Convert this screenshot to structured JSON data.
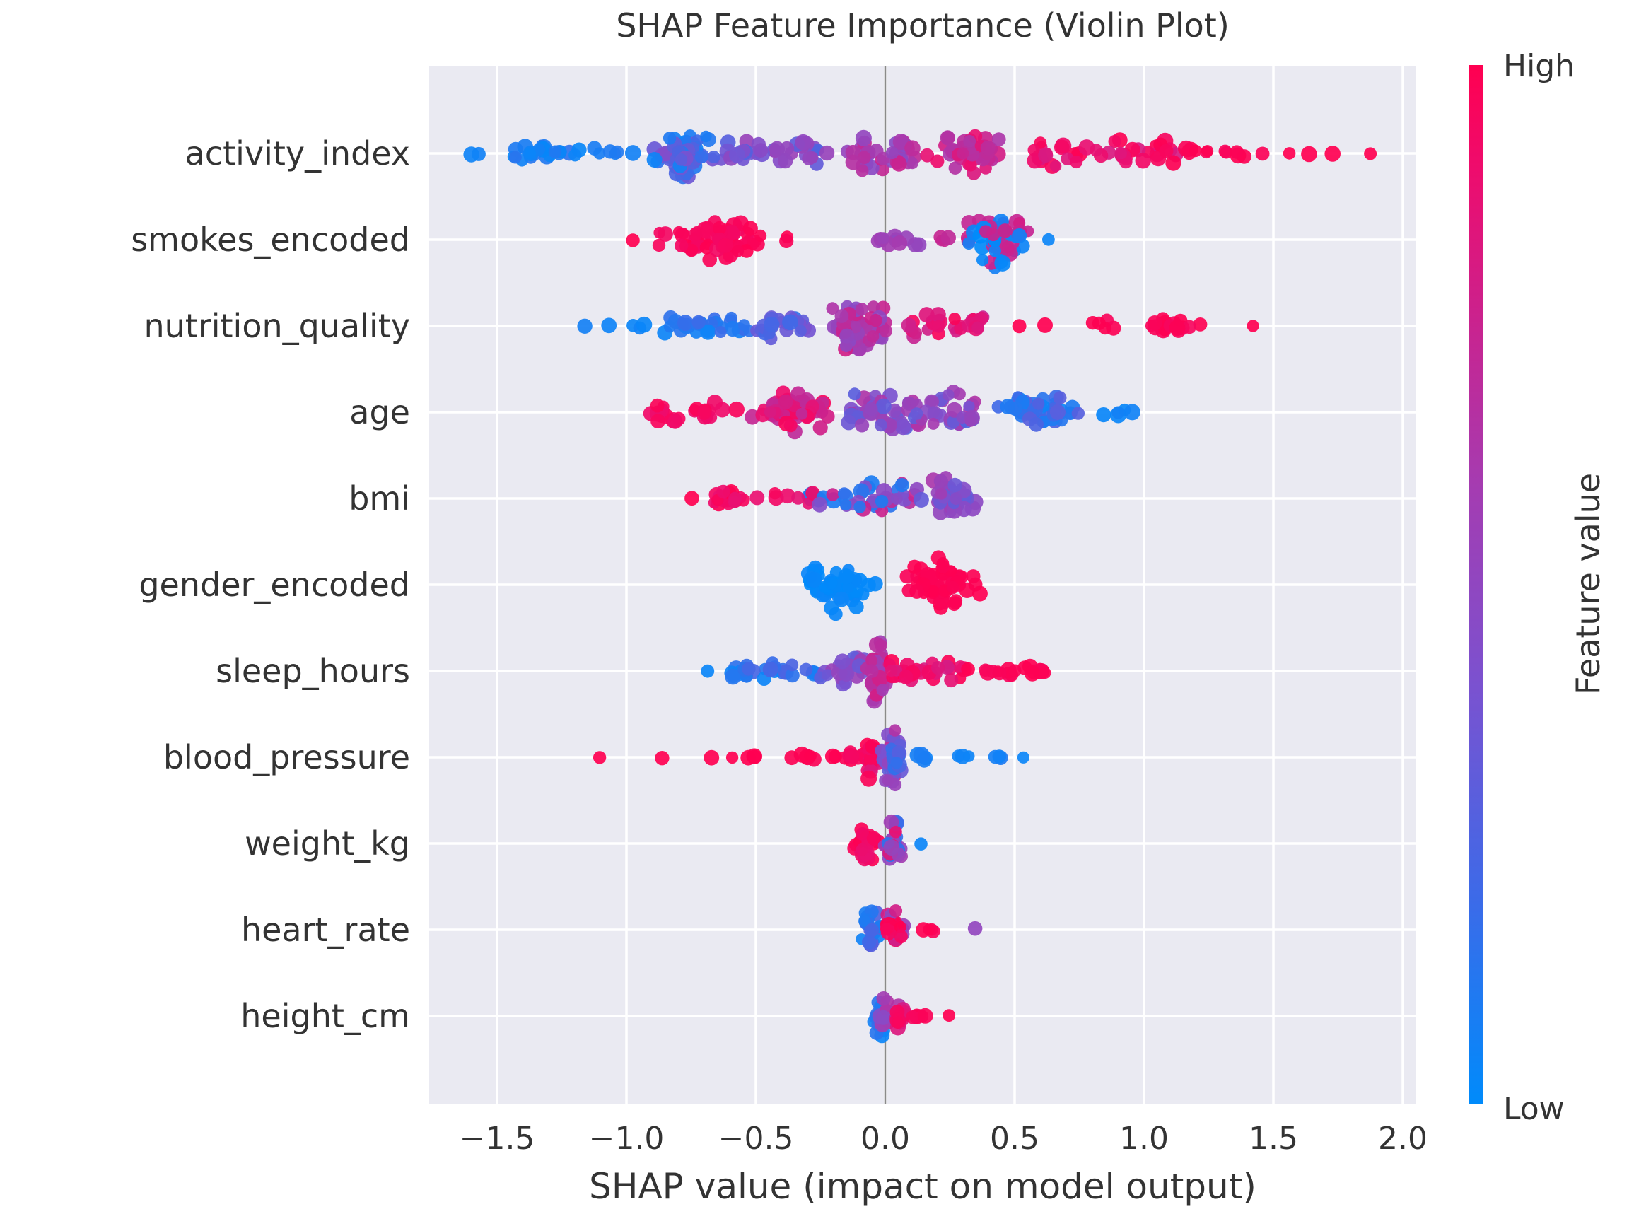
{
  "chart_data": {
    "type": "scatter",
    "subtype": "shap-beeswarm",
    "title": "SHAP Feature Importance (Violin Plot)",
    "xlabel": "SHAP value (impact on model output)",
    "background_color": "#eaeaf2",
    "gridline_color": "#ffffff",
    "zero_line_color": "#8a8a8a",
    "text_color": "#3a3a3a",
    "xlim": [
      -1.76,
      2.05
    ],
    "x_ticks": [
      -1.5,
      -1.0,
      -0.5,
      0.0,
      0.5,
      1.0,
      1.5,
      2.0
    ],
    "x_tick_labels": [
      "−1.5",
      "−1.0",
      "−0.5",
      "0.0",
      "0.5",
      "1.0",
      "1.5",
      "2.0"
    ],
    "legend_position": "right-colorbar",
    "grid": true,
    "colorbar": {
      "label": "Feature value",
      "high_label": "High",
      "low_label": "Low",
      "top_color": "#ff0051",
      "bottom_color": "#008bfb"
    },
    "colormap_stops": [
      {
        "p": 0.0,
        "c": "#008bfb"
      },
      {
        "p": 0.2,
        "c": "#3d6ae8"
      },
      {
        "p": 0.4,
        "c": "#7a52d0"
      },
      {
        "p": 0.6,
        "c": "#a63bb0"
      },
      {
        "p": 0.75,
        "c": "#c9238f"
      },
      {
        "p": 0.9,
        "c": "#ee0c6d"
      },
      {
        "p": 1.0,
        "c": "#ff0051"
      }
    ],
    "features": [
      {
        "name": "activity_index",
        "shap_range": [
          -1.62,
          1.87
        ],
        "clusters": [
          {
            "x0": -1.62,
            "x1": -1.53,
            "n": 2,
            "h": 3,
            "shape": "band",
            "t": [
              0.02,
              0.08
            ]
          },
          {
            "x0": -1.44,
            "x1": -1.02,
            "n": 26,
            "h": 15,
            "shape": "band",
            "t": [
              0.02,
              0.15
            ]
          },
          {
            "x0": -0.99,
            "x1": -0.97,
            "n": 1,
            "h": 2,
            "shape": "band",
            "t": [
              0.04,
              0.1
            ]
          },
          {
            "x0": -0.96,
            "x1": -0.62,
            "n": 62,
            "h": 36,
            "shape": "spindle",
            "t": [
              0.05,
              0.45
            ]
          },
          {
            "x0": -0.62,
            "x1": -0.26,
            "n": 34,
            "h": 20,
            "shape": "band",
            "t": [
              0.25,
              0.55
            ]
          },
          {
            "x0": -0.24,
            "x1": -0.22,
            "n": 1,
            "h": 2,
            "shape": "band",
            "t": [
              0.45,
              0.55
            ]
          },
          {
            "x0": -0.18,
            "x1": 0.12,
            "n": 40,
            "h": 26,
            "shape": "band",
            "t": [
              0.45,
              0.75
            ]
          },
          {
            "x0": 0.12,
            "x1": 0.55,
            "n": 45,
            "h": 32,
            "shape": "spindle",
            "t": [
              0.6,
              0.9
            ]
          },
          {
            "x0": 0.55,
            "x1": 1.12,
            "n": 42,
            "h": 22,
            "shape": "band",
            "t": [
              0.8,
              1.0
            ]
          },
          {
            "x0": 1.12,
            "x1": 1.48,
            "n": 13,
            "h": 9,
            "shape": "band",
            "t": [
              0.95,
              1.0
            ]
          },
          {
            "x0": 1.55,
            "x1": 1.57,
            "n": 1,
            "h": 2,
            "shape": "band",
            "t": [
              1,
              1
            ]
          },
          {
            "x0": 1.63,
            "x1": 1.65,
            "n": 1,
            "h": 2,
            "shape": "band",
            "t": [
              1,
              1
            ]
          },
          {
            "x0": 1.72,
            "x1": 1.74,
            "n": 1,
            "h": 2,
            "shape": "band",
            "t": [
              1,
              1
            ]
          },
          {
            "x0": 1.86,
            "x1": 1.88,
            "n": 1,
            "h": 2,
            "shape": "band",
            "t": [
              1,
              1
            ]
          }
        ]
      },
      {
        "name": "smokes_encoded",
        "shap_range": [
          -0.98,
          0.64
        ],
        "clusters": [
          {
            "x0": -0.98,
            "x1": -0.96,
            "n": 1,
            "h": 2,
            "shape": "band",
            "t": [
              1,
              1
            ]
          },
          {
            "x0": -0.93,
            "x1": -0.4,
            "n": 58,
            "h": 32,
            "shape": "spindle",
            "t": [
              0.93,
              1.0
            ]
          },
          {
            "x0": -0.4,
            "x1": -0.37,
            "n": 2,
            "h": 6,
            "shape": "band",
            "t": [
              0.95,
              1.0
            ]
          },
          {
            "x0": -0.03,
            "x1": 0.17,
            "n": 12,
            "h": 12,
            "shape": "band",
            "t": [
              0.5,
              0.6
            ]
          },
          {
            "x0": 0.17,
            "x1": 0.25,
            "n": 4,
            "h": 8,
            "shape": "band",
            "t": [
              0.7,
              0.8
            ]
          },
          {
            "x0": 0.26,
            "x1": 0.6,
            "n": 56,
            "h": 44,
            "shape": "spindle",
            "mix": [
              0.03,
              0.75
            ]
          },
          {
            "x0": 0.63,
            "x1": 0.65,
            "n": 1,
            "h": 2,
            "shape": "band",
            "t": [
              0.03,
              0.06
            ]
          }
        ]
      },
      {
        "name": "nutrition_quality",
        "shap_range": [
          -1.16,
          1.42
        ],
        "clusters": [
          {
            "x0": -1.17,
            "x1": -1.15,
            "n": 1,
            "h": 2,
            "shape": "band",
            "t": [
              0.03,
              0.07
            ]
          },
          {
            "x0": -1.08,
            "x1": -1.06,
            "n": 1,
            "h": 2,
            "shape": "band",
            "t": [
              0.03,
              0.07
            ]
          },
          {
            "x0": -1.01,
            "x1": -0.92,
            "n": 3,
            "h": 5,
            "shape": "band",
            "t": [
              0.03,
              0.08
            ]
          },
          {
            "x0": -0.88,
            "x1": -0.52,
            "n": 28,
            "h": 15,
            "shape": "band",
            "t": [
              0.03,
              0.2
            ]
          },
          {
            "x0": -0.52,
            "x1": -0.29,
            "n": 24,
            "h": 20,
            "shape": "band",
            "t": [
              0.15,
              0.45
            ]
          },
          {
            "x0": -0.29,
            "x1": 0.08,
            "n": 58,
            "h": 38,
            "shape": "spindle",
            "t": [
              0.45,
              0.78
            ]
          },
          {
            "x0": 0.08,
            "x1": 0.4,
            "n": 30,
            "h": 18,
            "shape": "band",
            "t": [
              0.72,
              0.97
            ]
          },
          {
            "x0": 0.51,
            "x1": 0.53,
            "n": 1,
            "h": 2,
            "shape": "band",
            "t": [
              1,
              1
            ]
          },
          {
            "x0": 0.62,
            "x1": 0.64,
            "n": 1,
            "h": 2,
            "shape": "band",
            "t": [
              1,
              1
            ]
          },
          {
            "x0": 0.75,
            "x1": 1.22,
            "n": 20,
            "h": 12,
            "shape": "band",
            "t": [
              0.95,
              1.0
            ]
          },
          {
            "x0": 1.41,
            "x1": 1.43,
            "n": 1,
            "h": 2,
            "shape": "band",
            "t": [
              1,
              1
            ]
          }
        ]
      },
      {
        "name": "age",
        "shap_range": [
          -0.96,
          0.95
        ],
        "clusters": [
          {
            "x0": -0.97,
            "x1": -0.58,
            "n": 24,
            "h": 16,
            "shape": "band",
            "t": [
              0.9,
              1.0
            ]
          },
          {
            "x0": -0.58,
            "x1": -0.15,
            "n": 55,
            "h": 32,
            "shape": "spindle",
            "t": [
              0.7,
              0.97
            ]
          },
          {
            "x0": -0.15,
            "x1": 0.34,
            "n": 75,
            "h": 34,
            "shape": "band",
            "t": [
              0.25,
              0.65
            ]
          },
          {
            "x0": 0.34,
            "x1": 0.82,
            "n": 44,
            "h": 28,
            "shape": "spindle",
            "t": [
              0.03,
              0.3
            ]
          },
          {
            "x0": 0.82,
            "x1": 0.93,
            "n": 4,
            "h": 8,
            "shape": "band",
            "t": [
              0.02,
              0.1
            ]
          },
          {
            "x0": 0.94,
            "x1": 0.96,
            "n": 1,
            "h": 2,
            "shape": "band",
            "t": [
              0.02,
              0.06
            ]
          }
        ]
      },
      {
        "name": "bmi",
        "shap_range": [
          -0.75,
          0.37
        ],
        "clusters": [
          {
            "x0": -0.76,
            "x1": -0.74,
            "n": 1,
            "h": 2,
            "shape": "band",
            "t": [
              1,
              1
            ]
          },
          {
            "x0": -0.67,
            "x1": -0.36,
            "n": 20,
            "h": 12,
            "shape": "band",
            "t": [
              0.85,
              1.0
            ]
          },
          {
            "x0": -0.36,
            "x1": -0.25,
            "n": 8,
            "h": 12,
            "shape": "band",
            "mix": [
              0.08,
              0.9
            ]
          },
          {
            "x0": -0.25,
            "x1": 0.13,
            "n": 36,
            "h": 24,
            "shape": "band",
            "mix": [
              0.12,
              0.45,
              0.72
            ]
          },
          {
            "x0": 0.13,
            "x1": 0.37,
            "n": 40,
            "h": 42,
            "shape": "spindle",
            "t": [
              0.3,
              0.62
            ]
          }
        ]
      },
      {
        "name": "gender_encoded",
        "shap_range": [
          -0.35,
          0.41
        ],
        "clusters": [
          {
            "x0": -0.35,
            "x1": -0.02,
            "n": 56,
            "h": 46,
            "shape": "spindle",
            "t": [
              0.0,
              0.04
            ]
          },
          {
            "x0": 0.06,
            "x1": 0.41,
            "n": 56,
            "h": 46,
            "shape": "spindle",
            "t": [
              0.97,
              1.0
            ]
          }
        ]
      },
      {
        "name": "sleep_hours",
        "shap_range": [
          -0.69,
          0.67
        ],
        "clusters": [
          {
            "x0": -0.7,
            "x1": -0.68,
            "n": 1,
            "h": 2,
            "shape": "band",
            "t": [
              0.03,
              0.06
            ]
          },
          {
            "x0": -0.6,
            "x1": -0.25,
            "n": 30,
            "h": 13,
            "shape": "band",
            "t": [
              0.03,
              0.25
            ]
          },
          {
            "x0": -0.25,
            "x1": -0.08,
            "n": 25,
            "h": 24,
            "shape": "band",
            "t": [
              0.3,
              0.6
            ]
          },
          {
            "x0": -0.08,
            "x1": 0.02,
            "n": 30,
            "h": 54,
            "shape": "spindle",
            "t": [
              0.55,
              0.8
            ]
          },
          {
            "x0": 0.02,
            "x1": 0.34,
            "n": 30,
            "h": 15,
            "shape": "band",
            "t": [
              0.78,
              1.0
            ]
          },
          {
            "x0": 0.34,
            "x1": 0.67,
            "n": 17,
            "h": 10,
            "shape": "band",
            "t": [
              0.95,
              1.0
            ]
          }
        ]
      },
      {
        "name": "blood_pressure",
        "shap_range": [
          -1.11,
          0.53
        ],
        "clusters": [
          {
            "x0": -1.12,
            "x1": -1.1,
            "n": 1,
            "h": 2,
            "shape": "band",
            "t": [
              1,
              1
            ]
          },
          {
            "x0": -0.87,
            "x1": -0.85,
            "n": 1,
            "h": 2,
            "shape": "band",
            "t": [
              1,
              1
            ]
          },
          {
            "x0": -0.67,
            "x1": -0.65,
            "n": 1,
            "h": 2,
            "shape": "band",
            "t": [
              1,
              1
            ]
          },
          {
            "x0": -0.6,
            "x1": -0.58,
            "n": 1,
            "h": 2,
            "shape": "band",
            "t": [
              1,
              1
            ]
          },
          {
            "x0": -0.55,
            "x1": -0.48,
            "n": 3,
            "h": 3,
            "shape": "band",
            "t": [
              1,
              1
            ]
          },
          {
            "x0": -0.4,
            "x1": -0.15,
            "n": 9,
            "h": 4,
            "shape": "band",
            "t": [
              0.97,
              1.0
            ]
          },
          {
            "x0": -0.15,
            "x1": -0.02,
            "n": 14,
            "h": 10,
            "shape": "band",
            "t": [
              0.93,
              1.0
            ]
          },
          {
            "x0": -0.1,
            "x1": 0.0,
            "n": 20,
            "h": 42,
            "shape": "spindle",
            "t": [
              0.8,
              1.0
            ]
          },
          {
            "x0": -0.04,
            "x1": 0.08,
            "n": 26,
            "h": 48,
            "shape": "spindle",
            "t": [
              0.3,
              0.75
            ]
          },
          {
            "x0": 0.0,
            "x1": 0.1,
            "n": 12,
            "h": 26,
            "shape": "spindle",
            "t": [
              0.05,
              0.35
            ]
          },
          {
            "x0": 0.11,
            "x1": 0.21,
            "n": 4,
            "h": 6,
            "shape": "band",
            "t": [
              0.03,
              0.1
            ]
          },
          {
            "x0": 0.23,
            "x1": 0.33,
            "n": 3,
            "h": 4,
            "shape": "band",
            "t": [
              0.03,
              0.1
            ]
          },
          {
            "x0": 0.4,
            "x1": 0.49,
            "n": 4,
            "h": 4,
            "shape": "band",
            "t": [
              0.03,
              0.1
            ]
          },
          {
            "x0": 0.52,
            "x1": 0.54,
            "n": 1,
            "h": 2,
            "shape": "band",
            "t": [
              0.03,
              0.06
            ]
          }
        ]
      },
      {
        "name": "weight_kg",
        "shap_range": [
          -0.13,
          0.13
        ],
        "clusters": [
          {
            "x0": -0.13,
            "x1": -0.02,
            "n": 25,
            "h": 32,
            "shape": "spindle",
            "t": [
              0.88,
              1.0
            ]
          },
          {
            "x0": -0.03,
            "x1": 0.08,
            "n": 30,
            "h": 36,
            "shape": "spindle",
            "mix": [
              0.15,
              0.55,
              0.85
            ]
          },
          {
            "x0": 0.12,
            "x1": 0.14,
            "n": 1,
            "h": 2,
            "shape": "band",
            "t": [
              0.03,
              0.08
            ]
          }
        ]
      },
      {
        "name": "heart_rate",
        "shap_range": [
          -0.11,
          0.35
        ],
        "clusters": [
          {
            "x0": -0.11,
            "x1": -0.01,
            "n": 22,
            "h": 36,
            "shape": "spindle",
            "t": [
              0.05,
              0.3
            ]
          },
          {
            "x0": -0.02,
            "x1": 0.09,
            "n": 28,
            "h": 40,
            "shape": "spindle",
            "mix": [
              0.5,
              0.8,
              0.97
            ]
          },
          {
            "x0": 0.12,
            "x1": 0.21,
            "n": 4,
            "h": 4,
            "shape": "band",
            "t": [
              0.95,
              1.0
            ]
          },
          {
            "x0": 0.34,
            "x1": 0.36,
            "n": 1,
            "h": 2,
            "shape": "band",
            "t": [
              0.5,
              0.55
            ]
          }
        ]
      },
      {
        "name": "height_cm",
        "shap_range": [
          -0.06,
          0.24
        ],
        "clusters": [
          {
            "x0": -0.06,
            "x1": 0.02,
            "n": 18,
            "h": 36,
            "shape": "spindle",
            "t": [
              0.03,
              0.25
            ]
          },
          {
            "x0": -0.04,
            "x1": 0.06,
            "n": 15,
            "h": 40,
            "shape": "spindle",
            "t": [
              0.45,
              0.7
            ]
          },
          {
            "x0": 0.02,
            "x1": 0.09,
            "n": 12,
            "h": 22,
            "shape": "spindle",
            "t": [
              0.78,
              1.0
            ]
          },
          {
            "x0": 0.09,
            "x1": 0.2,
            "n": 8,
            "h": 5,
            "shape": "band",
            "t": [
              0.95,
              1.0
            ]
          },
          {
            "x0": 0.23,
            "x1": 0.25,
            "n": 1,
            "h": 2,
            "shape": "band",
            "t": [
              1,
              1
            ]
          }
        ]
      }
    ]
  }
}
